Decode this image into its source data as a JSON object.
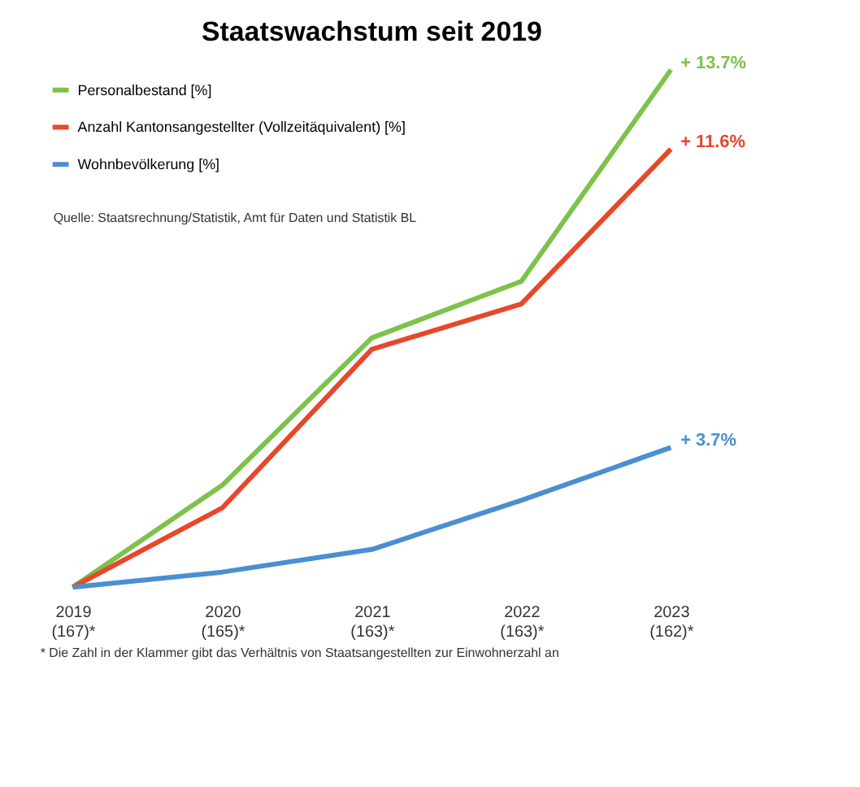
{
  "chart_data": {
    "type": "line",
    "title": "Staatswachstum seit 2019",
    "categories": [
      "2019\n(167)*",
      "2020\n(165)*",
      "2021\n(163)*",
      "2022\n(163)*",
      "2023\n(162)*"
    ],
    "series": [
      {
        "name": "Personalbestand [%]",
        "color": "#7dc24b",
        "values": [
          0,
          2.7,
          6.6,
          8.1,
          13.7
        ],
        "value_labels": [
          null,
          null,
          null,
          null,
          "+ 13.7%"
        ]
      },
      {
        "name": "Anzahl Kantonsangestellter (Vollzeitäquivalent) [%]",
        "color": "#e8472b",
        "values": [
          0,
          2.1,
          6.3,
          7.5,
          11.6
        ],
        "value_labels": [
          null,
          null,
          null,
          null,
          "+ 11.6%"
        ]
      },
      {
        "name": "Wohnbevölkerung [%]",
        "color": "#4a8fd0",
        "values": [
          0,
          0.4,
          1.0,
          2.3,
          3.7
        ],
        "value_labels": [
          null,
          null,
          null,
          null,
          "+ 3.7%"
        ]
      }
    ],
    "annotations": [
      "Quelle: Staatsrechnung/Statistik, Amt für Daten und Statistik BL",
      "* Die Zahl in der Klammer gibt das Verhältnis von Staatsangestellten zur Einwohnerzahl an"
    ],
    "legend": "top left",
    "grid": false,
    "marker": "none",
    "line_style": "solid"
  }
}
